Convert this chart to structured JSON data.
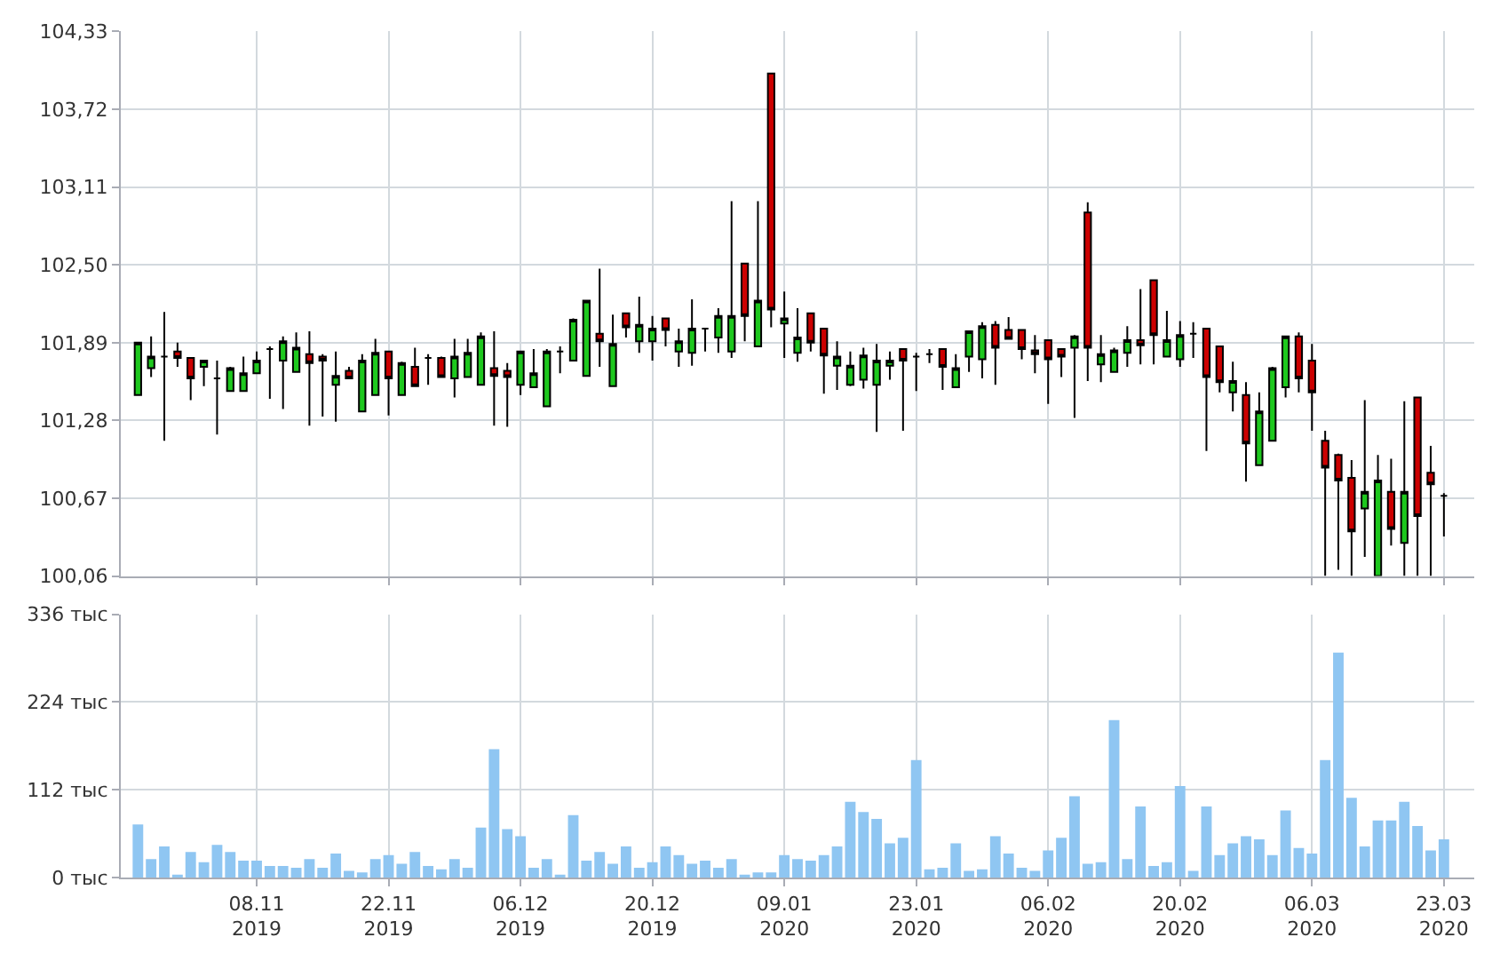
{
  "chart_data": [
    {
      "type": "candlestick",
      "categories": [
        null,
        null,
        null,
        null,
        null,
        null,
        null,
        null,
        null,
        null,
        null,
        null,
        null,
        null,
        null,
        null,
        null,
        null,
        null,
        null,
        null,
        null,
        null,
        null,
        null,
        null,
        null,
        null,
        null,
        null,
        null,
        null,
        null,
        null,
        null,
        null,
        null,
        null,
        null,
        null,
        null,
        null,
        null,
        null,
        null,
        null,
        null,
        null,
        null,
        null,
        null,
        null,
        null,
        null,
        null,
        null,
        null,
        null,
        null,
        null,
        null,
        null,
        null,
        null,
        null,
        null,
        null,
        null,
        null,
        null,
        null,
        null,
        null,
        null,
        null,
        null,
        null,
        null,
        null,
        null,
        null,
        null,
        null,
        null,
        null,
        null,
        null,
        null,
        null,
        null,
        null,
        null,
        null,
        null,
        null,
        null,
        null,
        null,
        null,
        null
      ],
      "ohlc": [
        [
          101.48,
          101.89,
          101.48,
          101.89
        ],
        [
          101.69,
          101.94,
          101.62,
          101.78
        ],
        [
          101.78,
          102.13,
          101.12,
          101.78
        ],
        [
          101.82,
          101.89,
          101.7,
          101.77
        ],
        [
          101.77,
          101.77,
          101.44,
          101.61
        ],
        [
          101.7,
          101.75,
          101.55,
          101.75
        ],
        [
          101.61,
          101.75,
          101.17,
          101.61
        ],
        [
          101.51,
          101.7,
          101.51,
          101.69
        ],
        [
          101.51,
          101.78,
          101.51,
          101.65
        ],
        [
          101.65,
          101.82,
          101.65,
          101.75
        ],
        [
          101.84,
          101.86,
          101.45,
          101.84
        ],
        [
          101.75,
          101.94,
          101.37,
          101.9
        ],
        [
          101.66,
          101.97,
          101.66,
          101.85
        ],
        [
          101.8,
          101.98,
          101.24,
          101.73
        ],
        [
          101.78,
          101.8,
          101.31,
          101.75
        ],
        [
          101.56,
          101.82,
          101.27,
          101.63
        ],
        [
          101.67,
          101.7,
          101.61,
          101.61
        ],
        [
          101.35,
          101.8,
          101.35,
          101.75
        ],
        [
          101.48,
          101.92,
          101.48,
          101.81
        ],
        [
          101.82,
          101.82,
          101.32,
          101.61
        ],
        [
          101.48,
          101.74,
          101.48,
          101.73
        ],
        [
          101.7,
          101.85,
          101.55,
          101.55
        ],
        [
          101.77,
          101.8,
          101.56,
          101.77
        ],
        [
          101.77,
          101.78,
          101.62,
          101.62
        ],
        [
          101.61,
          101.92,
          101.46,
          101.78
        ],
        [
          101.62,
          101.92,
          101.62,
          101.81
        ],
        [
          101.56,
          101.97,
          101.56,
          101.94
        ],
        [
          101.69,
          101.98,
          101.24,
          101.63
        ],
        [
          101.67,
          101.73,
          101.23,
          101.62
        ],
        [
          101.56,
          101.82,
          101.48,
          101.82
        ],
        [
          101.54,
          101.84,
          101.54,
          101.65
        ],
        [
          101.39,
          101.84,
          101.39,
          101.82
        ],
        [
          101.82,
          101.86,
          101.65,
          101.82
        ],
        [
          101.75,
          102.08,
          101.75,
          102.07
        ],
        [
          101.63,
          102.22,
          101.63,
          102.22
        ],
        [
          101.96,
          102.47,
          101.7,
          101.9
        ],
        [
          101.55,
          102.11,
          101.55,
          101.88
        ],
        [
          102.12,
          102.12,
          101.93,
          102.01
        ],
        [
          101.9,
          102.25,
          101.81,
          102.03
        ],
        [
          101.9,
          102.1,
          101.75,
          102.0
        ],
        [
          102.08,
          102.08,
          101.86,
          101.99
        ],
        [
          101.82,
          102.0,
          101.7,
          101.9
        ],
        [
          101.81,
          102.23,
          101.71,
          102.0
        ],
        [
          102.0,
          102.0,
          101.82,
          102.0
        ],
        [
          101.93,
          102.16,
          101.81,
          102.1
        ],
        [
          101.82,
          103.0,
          101.77,
          102.1
        ],
        [
          102.51,
          102.51,
          101.9,
          102.1
        ],
        [
          101.86,
          103.0,
          101.86,
          102.22
        ],
        [
          104.0,
          104.0,
          102.01,
          102.15
        ],
        [
          102.04,
          102.29,
          101.77,
          102.08
        ],
        [
          101.81,
          102.16,
          101.74,
          101.93
        ],
        [
          102.12,
          102.12,
          101.82,
          101.89
        ],
        [
          102.0,
          102.0,
          101.49,
          101.79
        ],
        [
          101.71,
          101.9,
          101.52,
          101.78
        ],
        [
          101.56,
          101.82,
          101.55,
          101.71
        ],
        [
          101.6,
          101.85,
          101.53,
          101.79
        ],
        [
          101.56,
          101.88,
          101.19,
          101.75
        ],
        [
          101.71,
          101.82,
          101.6,
          101.75
        ],
        [
          101.84,
          101.84,
          101.2,
          101.75
        ],
        [
          101.78,
          101.81,
          101.51,
          101.78
        ],
        [
          101.8,
          101.84,
          101.73,
          101.8
        ],
        [
          101.84,
          101.84,
          101.52,
          101.7
        ],
        [
          101.54,
          101.8,
          101.54,
          101.69
        ],
        [
          101.78,
          101.98,
          101.66,
          101.98
        ],
        [
          101.76,
          102.05,
          101.61,
          102.02
        ],
        [
          102.03,
          102.06,
          101.56,
          101.85
        ],
        [
          101.99,
          102.09,
          101.92,
          101.92
        ],
        [
          101.99,
          101.99,
          101.76,
          101.84
        ],
        [
          101.83,
          101.95,
          101.65,
          101.8
        ],
        [
          101.91,
          101.91,
          101.41,
          101.76
        ],
        [
          101.84,
          101.84,
          101.62,
          101.78
        ],
        [
          101.85,
          101.95,
          101.3,
          101.94
        ],
        [
          102.91,
          102.99,
          101.59,
          101.85
        ],
        [
          101.72,
          101.95,
          101.58,
          101.8
        ],
        [
          101.66,
          101.85,
          101.66,
          101.83
        ],
        [
          101.81,
          102.02,
          101.7,
          101.91
        ],
        [
          101.91,
          102.31,
          101.72,
          101.87
        ],
        [
          102.38,
          102.38,
          101.72,
          101.95
        ],
        [
          101.78,
          102.14,
          101.78,
          101.91
        ],
        [
          101.76,
          102.06,
          101.7,
          101.95
        ],
        [
          101.96,
          102.05,
          101.77,
          101.96
        ],
        [
          102.0,
          102.0,
          101.04,
          101.62
        ],
        [
          101.86,
          101.86,
          101.5,
          101.58
        ],
        [
          101.5,
          101.74,
          101.35,
          101.59
        ],
        [
          101.48,
          101.58,
          100.8,
          101.1
        ],
        [
          100.93,
          101.5,
          100.93,
          101.35
        ],
        [
          101.12,
          101.7,
          101.12,
          101.69
        ],
        [
          101.54,
          101.94,
          101.46,
          101.94
        ],
        [
          101.94,
          101.97,
          101.5,
          101.61
        ],
        [
          101.75,
          101.88,
          101.2,
          101.5
        ],
        [
          101.12,
          101.2,
          100.06,
          100.91
        ],
        [
          101.01,
          101.02,
          100.11,
          100.81
        ],
        [
          100.83,
          100.97,
          100.06,
          100.41
        ],
        [
          100.59,
          101.44,
          100.21,
          100.72
        ],
        [
          100.06,
          101.01,
          100.06,
          100.81
        ],
        [
          100.72,
          100.98,
          100.3,
          100.43
        ],
        [
          100.32,
          101.43,
          100.06,
          100.72
        ],
        [
          101.46,
          101.46,
          100.06,
          100.53
        ],
        [
          100.87,
          101.08,
          100.06,
          100.78
        ],
        [
          100.69,
          100.71,
          100.37,
          100.69
        ]
      ],
      "ylim": [
        100.06,
        104.33
      ],
      "yticks": [
        {
          "value": 100.06,
          "label": "100,06"
        },
        {
          "value": 100.67,
          "label": "100,67"
        },
        {
          "value": 101.28,
          "label": "101,28"
        },
        {
          "value": 101.89,
          "label": "101,89"
        },
        {
          "value": 102.5,
          "label": "102,50"
        },
        {
          "value": 103.11,
          "label": "103,11"
        },
        {
          "value": 103.72,
          "label": "103,72"
        },
        {
          "value": 104.33,
          "label": "104,33"
        }
      ],
      "grid": true,
      "tick_labels": "y"
    },
    {
      "type": "bar",
      "categories": [
        null,
        null,
        null,
        null,
        null,
        null,
        null,
        null,
        null,
        "08.11\n2019",
        null,
        null,
        null,
        null,
        null,
        null,
        null,
        null,
        null,
        "22.11\n2019",
        null,
        null,
        null,
        null,
        null,
        null,
        null,
        null,
        null,
        "06.12\n2019",
        null,
        null,
        null,
        null,
        null,
        null,
        null,
        null,
        null,
        "20.12\n2019",
        null,
        null,
        null,
        null,
        null,
        null,
        null,
        null,
        null,
        "09.01\n2020",
        null,
        null,
        null,
        null,
        null,
        null,
        null,
        null,
        null,
        "23.01\n2020",
        null,
        null,
        null,
        null,
        null,
        null,
        null,
        null,
        null,
        "06.02\n2020",
        null,
        null,
        null,
        null,
        null,
        null,
        null,
        null,
        null,
        "20.02\n2020",
        null,
        null,
        null,
        null,
        null,
        null,
        null,
        null,
        null,
        "06.03\n2020",
        null,
        null,
        null,
        null,
        null,
        null,
        null,
        null,
        null,
        "23.03\n2020"
      ],
      "series": [
        {
          "color": "#8fc6f2",
          "values": [
            68,
            24,
            40,
            4,
            33,
            20,
            42,
            33,
            22,
            22,
            15,
            15,
            13,
            24,
            13,
            31,
            9,
            7,
            24,
            29,
            18,
            33,
            15,
            11,
            24,
            13,
            64,
            164,
            62,
            53,
            13,
            24,
            4,
            80,
            22,
            33,
            18,
            40,
            13,
            20,
            40,
            29,
            18,
            22,
            13,
            24,
            4,
            7,
            7,
            29,
            24,
            22,
            29,
            40,
            97,
            84,
            75,
            44,
            51,
            150,
            11,
            13,
            44,
            9,
            11,
            53,
            31,
            13,
            9,
            35,
            51,
            104,
            18,
            20,
            201,
            24,
            91,
            15,
            20,
            117,
            9,
            91,
            29,
            44,
            53,
            49,
            29,
            86,
            38,
            31,
            150,
            287,
            102,
            40,
            73,
            73,
            97,
            66,
            35,
            49
          ]
        }
      ],
      "ylim": [
        0,
        336
      ],
      "yticks": [
        {
          "value": 0,
          "label": "0 тыс"
        },
        {
          "value": 112,
          "label": "112 тыс"
        },
        {
          "value": 224,
          "label": "224 тыс"
        },
        {
          "value": 336,
          "label": "336 тыс"
        }
      ],
      "grid": true
    }
  ]
}
